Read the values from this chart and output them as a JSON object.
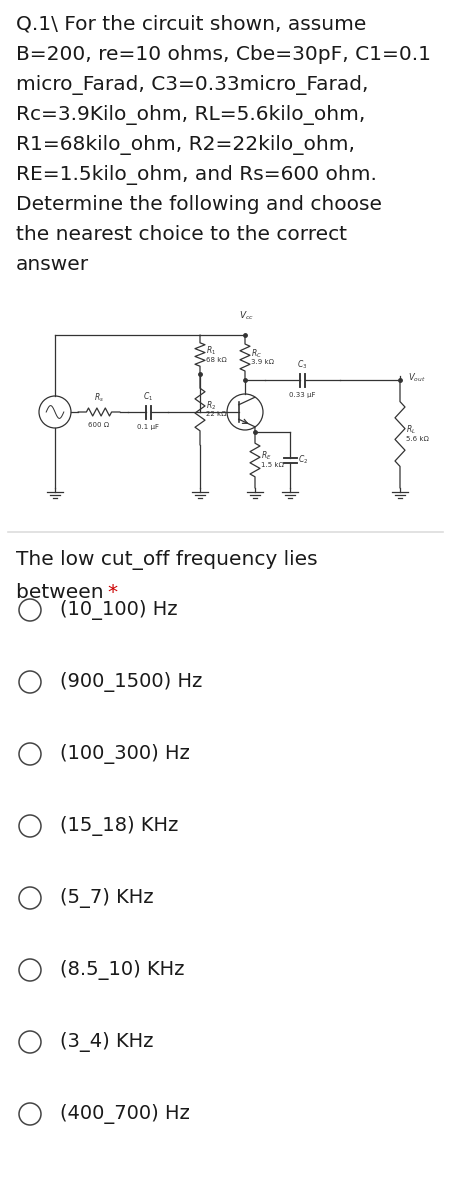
{
  "bg_color": "#ffffff",
  "text_color": "#1a1a1a",
  "asterisk_color": "#cc0000",
  "circuit_color": "#333333",
  "title_lines": [
    "Q.1\\ For the circuit shown, assume",
    "B=200, re=10 ohms, Cbe=30pF, C1=0.1",
    "micro_Farad, C3=0.33micro_Farad,",
    "Rc=3.9Kilo_ohm, RL=5.6kilo_ohm,",
    "R1=68kilo_ohm, R2=22kilo_ohm,",
    "RE=1.5kilo_ohm, and Rs=600 ohm.",
    "Determine the following and choose",
    "the nearest choice to the correct",
    "answer"
  ],
  "question_line1": "The low cut_off frequency lies",
  "question_line2": "between ",
  "question_asterisk": "*",
  "choices": [
    "(10_100) Hz",
    "(900_1500) Hz",
    "(100_300) Hz",
    "(15_18) KHz",
    "(5_7) KHz",
    "(8.5_10) KHz",
    "(3_4) KHz",
    "(400_700) Hz"
  ],
  "title_fontsize": 14.5,
  "question_fontsize": 14.5,
  "choice_fontsize": 14.0,
  "sep_color": "#dddddd"
}
